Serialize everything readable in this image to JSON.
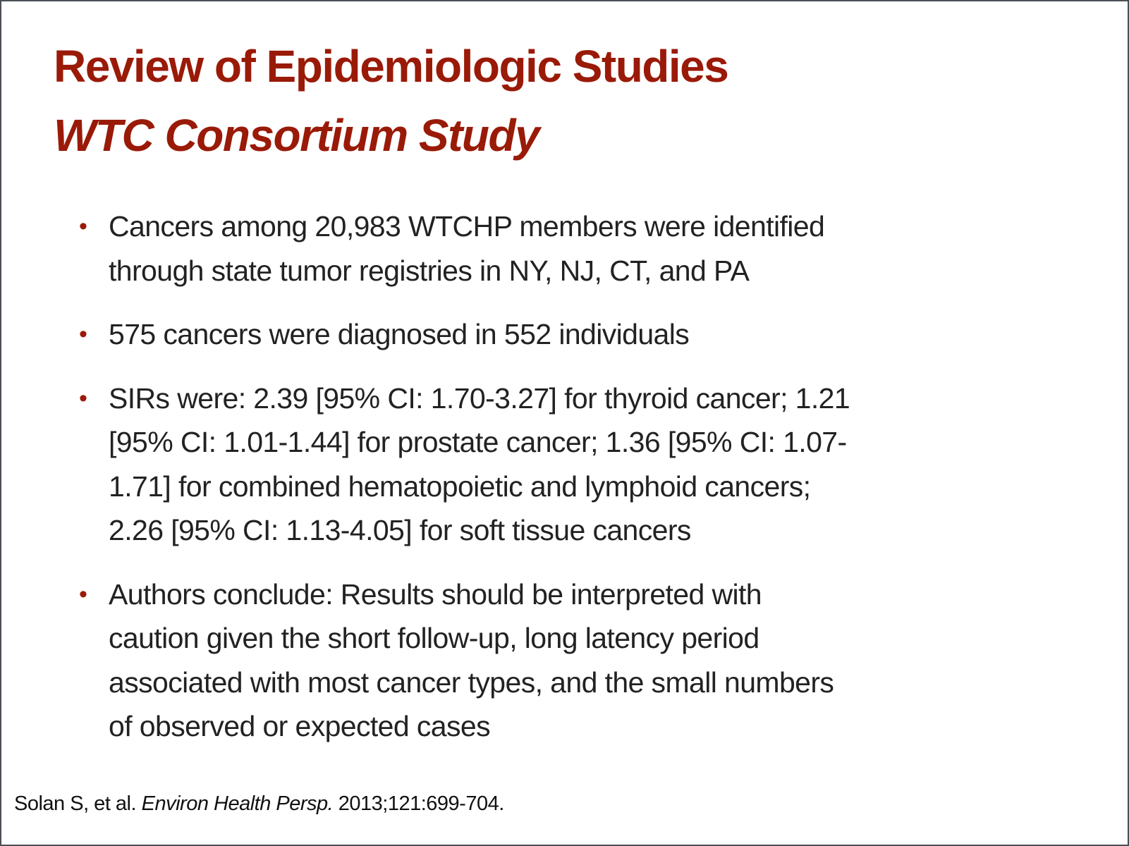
{
  "slide": {
    "title": "Review of Epidemiologic Studies",
    "subtitle": "WTC Consortium Study",
    "bullets": [
      {
        "lines": [
          "Cancers among 20,983 WTCHP members were identified",
          "through state tumor registries in NY, NJ, CT, and PA"
        ]
      },
      {
        "lines": [
          "575 cancers were diagnosed in 552 individuals"
        ]
      },
      {
        "lines": [
          "SIRs were: 2.39 [95% CI: 1.70-3.27] for thyroid cancer; 1.21",
          "[95% CI: 1.01-1.44] for prostate cancer; 1.36 [95% CI: 1.07-",
          "1.71] for combined hematopoietic and lymphoid cancers;",
          "2.26 [95% CI: 1.13-4.05] for soft tissue cancers"
        ]
      },
      {
        "lines": [
          "Authors conclude: Results should be interpreted with",
          "caution given the short follow-up, long latency period",
          "associated with most cancer types, and the small numbers",
          "of observed or expected cases"
        ]
      }
    ],
    "bullet_glyph": "•",
    "citation": {
      "authors": "Solan S, et al.",
      "journal": "Environ Health Persp.",
      "ref": "2013;121:699-704."
    }
  },
  "colors": {
    "accent": "#9a1a08",
    "text": "#222222",
    "border": "#4a4f55"
  }
}
